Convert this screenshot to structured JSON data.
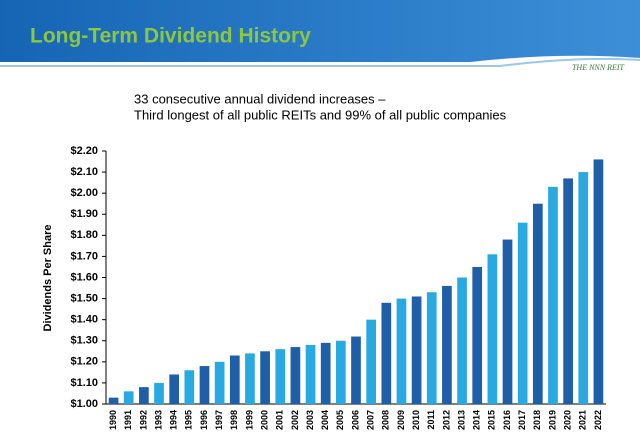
{
  "chart_data": {
    "type": "bar",
    "title": "Long-Term Dividend History",
    "logo": "THE NNN REIT",
    "subtitle": [
      "33 consecutive annual dividend increases –",
      "Third longest of all public REITs and 99% of all public companies"
    ],
    "y_label": "Dividends Per Share",
    "categories": [
      "1990",
      "1991",
      "1992",
      "1993",
      "1994",
      "1995",
      "1996",
      "1997",
      "1998",
      "1999",
      "2000",
      "2001",
      "2002",
      "2003",
      "2004",
      "2005",
      "2006",
      "2007",
      "2008",
      "2009",
      "2010",
      "2011",
      "2012",
      "2013",
      "2014",
      "2015",
      "2016",
      "2017",
      "2018",
      "2019",
      "2020",
      "2021",
      "2022"
    ],
    "values": [
      1.03,
      1.06,
      1.08,
      1.1,
      1.14,
      1.16,
      1.18,
      1.2,
      1.23,
      1.24,
      1.25,
      1.26,
      1.27,
      1.28,
      1.29,
      1.3,
      1.32,
      1.4,
      1.48,
      1.5,
      1.51,
      1.53,
      1.56,
      1.6,
      1.65,
      1.71,
      1.78,
      1.86,
      1.95,
      2.03,
      2.07,
      2.1,
      2.16
    ],
    "colors": [
      "#1f5fa8",
      "#29a9e1",
      "#1f5fa8",
      "#29a9e1",
      "#1f5fa8",
      "#29a9e1",
      "#1f5fa8",
      "#29a9e1",
      "#1f5fa8",
      "#29a9e1",
      "#1f5fa8",
      "#29a9e1",
      "#1f5fa8",
      "#29a9e1",
      "#1f5fa8",
      "#29a9e1",
      "#1f5fa8",
      "#29a9e1",
      "#1f5fa8",
      "#29a9e1",
      "#1f5fa8",
      "#29a9e1",
      "#1f5fa8",
      "#29a9e1",
      "#1f5fa8",
      "#29a9e1",
      "#1f5fa8",
      "#29a9e1",
      "#1f5fa8",
      "#29a9e1",
      "#1f5fa8",
      "#29a9e1",
      "#1f5fa8"
    ],
    "ylim": [
      1.0,
      2.2
    ],
    "yticks": [
      {
        "value": 1.0,
        "label": "$1.00"
      },
      {
        "value": 1.1,
        "label": "$1.10"
      },
      {
        "value": 1.2,
        "label": "$1.20"
      },
      {
        "value": 1.3,
        "label": "$1.30"
      },
      {
        "value": 1.4,
        "label": "$1.40"
      },
      {
        "value": 1.5,
        "label": "$1.50"
      },
      {
        "value": 1.6,
        "label": "$1.60"
      },
      {
        "value": 1.7,
        "label": "$1.70"
      },
      {
        "value": 1.8,
        "label": "$1.80"
      },
      {
        "value": 1.9,
        "label": "$1.90"
      },
      {
        "value": 2.0,
        "label": "$2.00"
      },
      {
        "value": 2.1,
        "label": "$2.10"
      },
      {
        "value": 2.2,
        "label": "$2.20"
      }
    ]
  }
}
